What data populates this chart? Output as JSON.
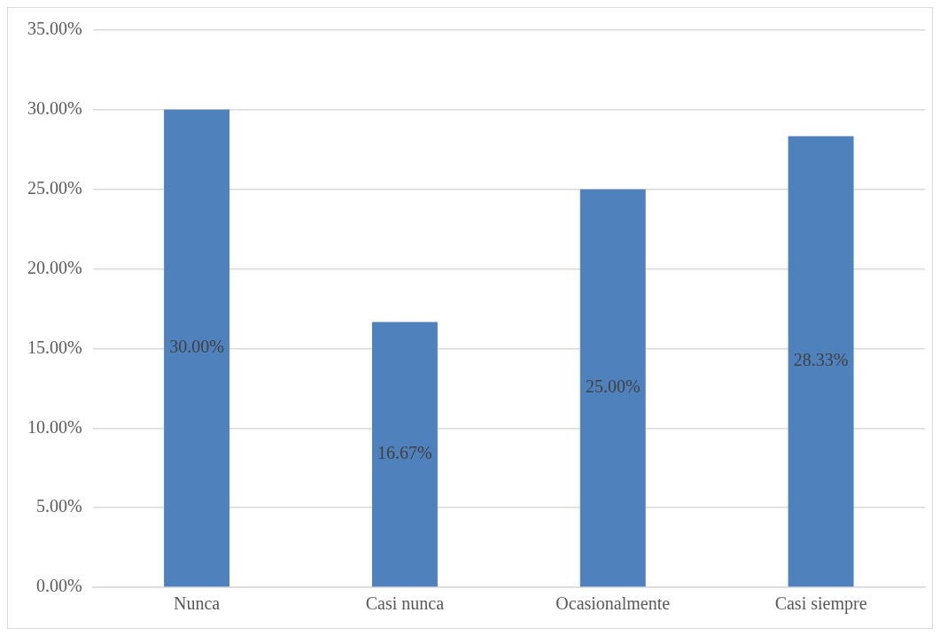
{
  "chart_data": {
    "type": "bar",
    "categories": [
      "Nunca",
      "Casi nunca",
      "Ocasionalmente",
      "Casi siempre"
    ],
    "values": [
      30,
      16.67,
      25,
      28.33
    ],
    "color": "#4f81bd",
    "value_labels": [
      "30.00%",
      "16.67%",
      "25.00%",
      "28.33%"
    ],
    "ylim": [
      0,
      35
    ],
    "yticks": [
      {
        "value": 0,
        "label": "0.00%"
      },
      {
        "value": 5,
        "label": "5.00%"
      },
      {
        "value": 10,
        "label": "10.00%"
      },
      {
        "value": 15,
        "label": "15.00%"
      },
      {
        "value": 20,
        "label": "20.00%"
      },
      {
        "value": 25,
        "label": "25.00%"
      },
      {
        "value": 30,
        "label": "30.00%"
      },
      {
        "value": 35,
        "label": "35.00%"
      }
    ],
    "grid": "y",
    "legend": false
  }
}
